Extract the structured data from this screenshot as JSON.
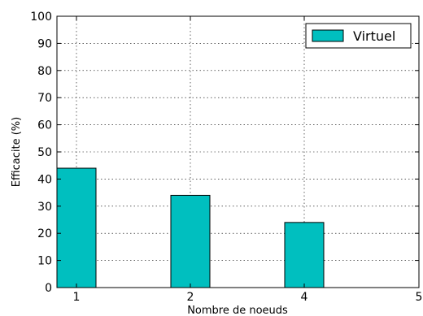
{
  "chart_data": {
    "type": "bar",
    "categories": [
      "1",
      "2",
      "4"
    ],
    "series": [
      {
        "name": "Virtuel",
        "values": [
          44,
          34,
          24
        ],
        "color": "#00bfbf"
      }
    ],
    "x_ticks": [
      "1",
      "2",
      "4",
      "5"
    ],
    "y_ticks": [
      "0",
      "10",
      "20",
      "30",
      "40",
      "50",
      "60",
      "70",
      "80",
      "90",
      "100"
    ],
    "xlabel": "Nombre de noeuds",
    "ylabel": "Efficacite (%)",
    "ylim": [
      0,
      100
    ],
    "grid": true,
    "legend_position": "top-right"
  }
}
